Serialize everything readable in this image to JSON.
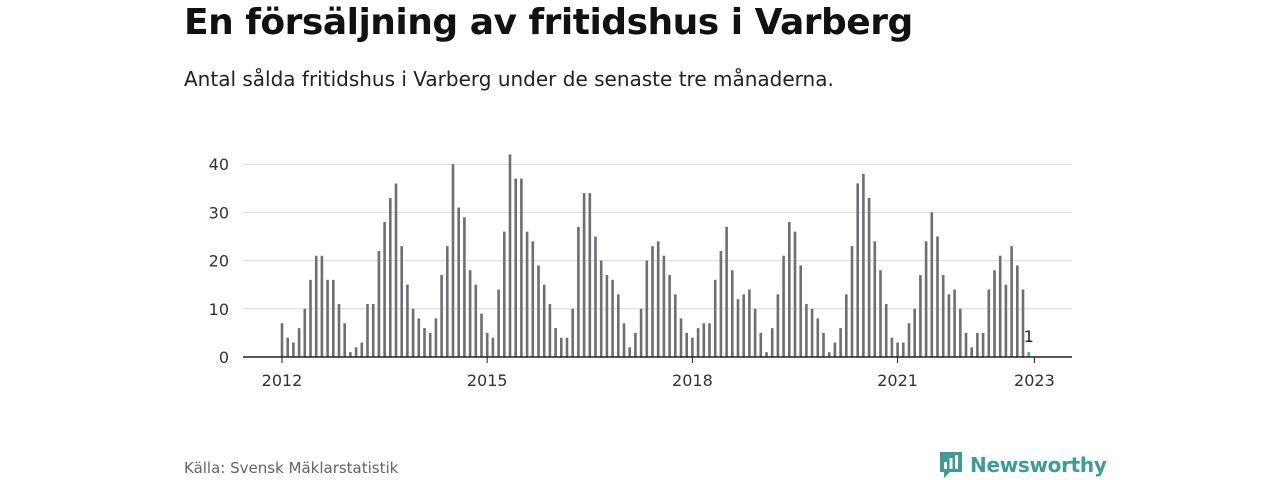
{
  "header": {
    "title": "En försäljning av fritidshus i Varberg",
    "subtitle": "Antal sålda fritidshus i Varberg under de senaste tre månaderna."
  },
  "footer": {
    "source": "Källa: Svensk Mäklarstatistik",
    "brand": "Newsworthy",
    "brand_icon": "newsworthy-logo-icon",
    "brand_color": "#3d9d96"
  },
  "chart_data": {
    "type": "bar",
    "title": "En försäljning av fritidshus i Varberg",
    "subtitle": "Antal sålda fritidshus i Varberg under de senaste tre månaderna.",
    "xlabel": "",
    "ylabel": "",
    "ylim": [
      0,
      42
    ],
    "yticks": [
      0,
      10,
      20,
      30,
      40
    ],
    "xticks": [
      {
        "date": "2012-01",
        "label": "2012"
      },
      {
        "date": "2015-01",
        "label": "2015"
      },
      {
        "date": "2018-01",
        "label": "2018"
      },
      {
        "date": "2021-01",
        "label": "2021"
      },
      {
        "date": "2023-01",
        "label": "2023"
      }
    ],
    "grid": true,
    "bar_color": "#6e6e73",
    "highlight_color": "#4a9fd0",
    "highlight": {
      "date": "2022-12",
      "label": "1"
    },
    "series": [
      {
        "dates": [
          "2012-01",
          "2012-02",
          "2012-03",
          "2012-04",
          "2012-05",
          "2012-06",
          "2012-07",
          "2012-08",
          "2012-09",
          "2012-10",
          "2012-11",
          "2012-12",
          "2013-01",
          "2013-02",
          "2013-03",
          "2013-04",
          "2013-05",
          "2013-06",
          "2013-07",
          "2013-08",
          "2013-09",
          "2013-10",
          "2013-11",
          "2013-12",
          "2014-01",
          "2014-02",
          "2014-03",
          "2014-04",
          "2014-05",
          "2014-06",
          "2014-07",
          "2014-08",
          "2014-09",
          "2014-10",
          "2014-11",
          "2014-12",
          "2015-01",
          "2015-02",
          "2015-03",
          "2015-04",
          "2015-05",
          "2015-06",
          "2015-07",
          "2015-08",
          "2015-09",
          "2015-10",
          "2015-11",
          "2015-12",
          "2016-01",
          "2016-02",
          "2016-03",
          "2016-04",
          "2016-05",
          "2016-06",
          "2016-07",
          "2016-08",
          "2016-09",
          "2016-10",
          "2016-11",
          "2016-12",
          "2017-01",
          "2017-02",
          "2017-03",
          "2017-04",
          "2017-05",
          "2017-06",
          "2017-07",
          "2017-08",
          "2017-09",
          "2017-10",
          "2017-11",
          "2017-12",
          "2018-01",
          "2018-02",
          "2018-03",
          "2018-04",
          "2018-05",
          "2018-06",
          "2018-07",
          "2018-08",
          "2018-09",
          "2018-10",
          "2018-11",
          "2018-12",
          "2019-01",
          "2019-02",
          "2019-03",
          "2019-04",
          "2019-05",
          "2019-06",
          "2019-07",
          "2019-08",
          "2019-09",
          "2019-10",
          "2019-11",
          "2019-12",
          "2020-01",
          "2020-02",
          "2020-03",
          "2020-04",
          "2020-05",
          "2020-06",
          "2020-07",
          "2020-08",
          "2020-09",
          "2020-10",
          "2020-11",
          "2020-12",
          "2021-01",
          "2021-02",
          "2021-03",
          "2021-04",
          "2021-05",
          "2021-06",
          "2021-07",
          "2021-08",
          "2021-09",
          "2021-10",
          "2021-11",
          "2021-12",
          "2022-01",
          "2022-02",
          "2022-03",
          "2022-04",
          "2022-05",
          "2022-06",
          "2022-07",
          "2022-08",
          "2022-09",
          "2022-10",
          "2022-11",
          "2022-12"
        ],
        "values": [
          7,
          4,
          3,
          6,
          10,
          16,
          21,
          21,
          16,
          16,
          11,
          7,
          1,
          2,
          3,
          11,
          11,
          22,
          28,
          33,
          36,
          23,
          15,
          10,
          8,
          6,
          5,
          8,
          17,
          23,
          40,
          31,
          29,
          18,
          15,
          9,
          5,
          4,
          14,
          26,
          42,
          37,
          37,
          26,
          24,
          19,
          15,
          11,
          6,
          4,
          4,
          10,
          27,
          34,
          34,
          25,
          20,
          17,
          16,
          13,
          7,
          2,
          5,
          10,
          20,
          23,
          24,
          21,
          17,
          13,
          8,
          5,
          4,
          6,
          7,
          7,
          16,
          22,
          27,
          18,
          12,
          13,
          14,
          10,
          5,
          1,
          6,
          13,
          21,
          28,
          26,
          19,
          11,
          10,
          8,
          5,
          1,
          3,
          6,
          13,
          23,
          36,
          38,
          33,
          24,
          18,
          11,
          4,
          3,
          3,
          7,
          10,
          17,
          24,
          30,
          25,
          17,
          13,
          14,
          10,
          5,
          2,
          5,
          5,
          14,
          18,
          21,
          15,
          23,
          19,
          14,
          1
        ]
      }
    ]
  }
}
